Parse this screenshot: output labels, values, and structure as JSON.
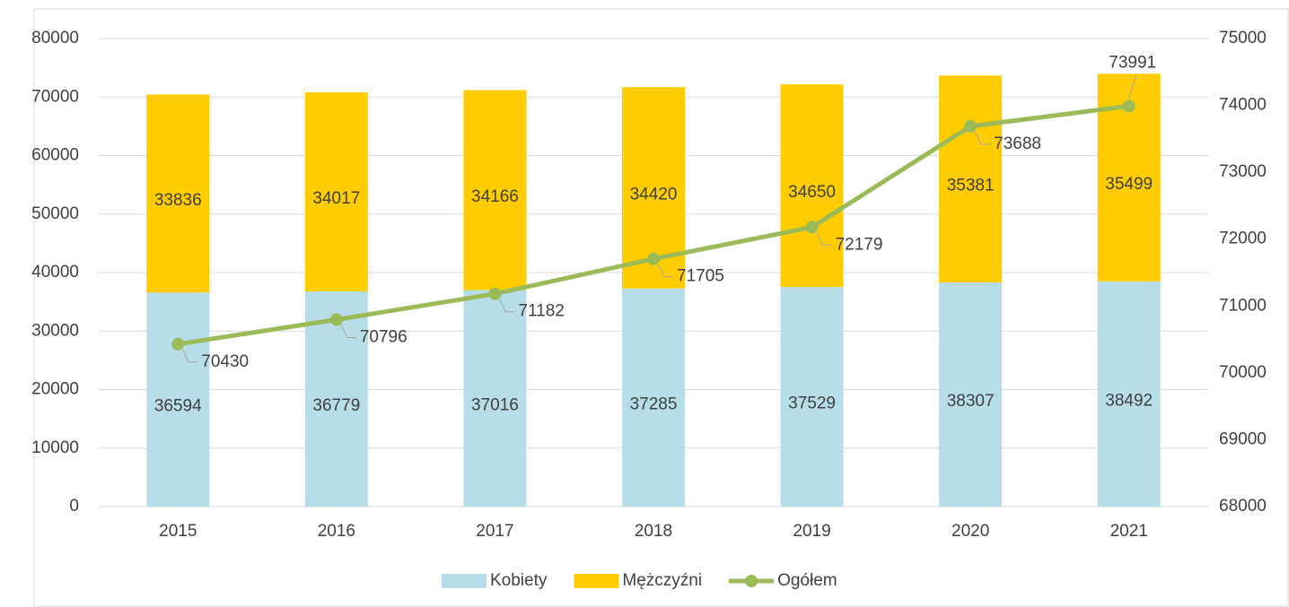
{
  "chart_data": {
    "type": "bar",
    "stacked": true,
    "categories": [
      "2015",
      "2016",
      "2017",
      "2018",
      "2019",
      "2020",
      "2021"
    ],
    "series": [
      {
        "name": "Kobiety",
        "color": "#b7dde8",
        "values": [
          36594,
          36779,
          37016,
          37285,
          37529,
          38307,
          38492
        ]
      },
      {
        "name": "Mężczyźni",
        "color": "#ffcc00",
        "values": [
          33836,
          34017,
          34166,
          34420,
          34650,
          35381,
          35499
        ]
      },
      {
        "name": "Ogółem",
        "type": "line",
        "axis": "y2",
        "color": "#9bbb59",
        "values": [
          70430,
          70796,
          71182,
          71705,
          72179,
          73688,
          73991
        ]
      }
    ],
    "ylim": [
      0,
      80000
    ],
    "yticks": [
      0,
      10000,
      20000,
      30000,
      40000,
      50000,
      60000,
      70000,
      80000
    ],
    "y2lim": [
      68000,
      75000
    ],
    "y2ticks": [
      68000,
      69000,
      70000,
      71000,
      72000,
      73000,
      74000,
      75000
    ],
    "grid": true,
    "legend": "bottom"
  }
}
